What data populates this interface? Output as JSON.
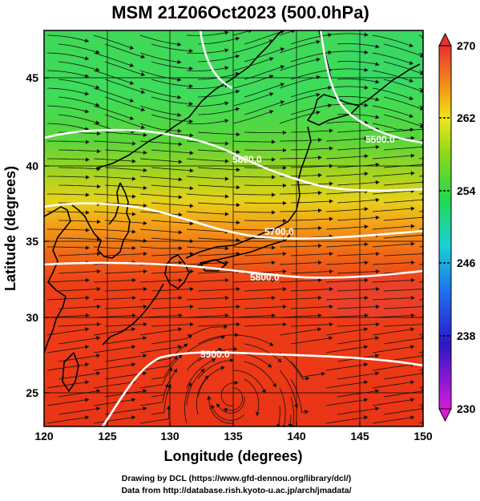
{
  "title": "MSM 21Z06Oct2023 (500.0hPa)",
  "x_axis": {
    "label": "Longitude (degrees)",
    "range": [
      120,
      150
    ],
    "ticks": [
      "120",
      "125",
      "130",
      "135",
      "140",
      "145",
      "150"
    ]
  },
  "y_axis": {
    "label": "Latitude  (degrees)",
    "range": [
      22.5,
      47.6
    ],
    "ticks": [
      "25",
      "30",
      "35",
      "40",
      "45"
    ]
  },
  "colorbar": {
    "range": [
      230,
      270
    ],
    "ticks": [
      "230",
      "238",
      "246",
      "254",
      "262",
      "270"
    ],
    "colors": [
      "#d81ad8",
      "#2a18c8",
      "#1e6ff0",
      "#19d2d6",
      "#23d84c",
      "#8ad81a",
      "#f0e61a",
      "#f59a18",
      "#ee3a16",
      "#e8302e"
    ]
  },
  "contours": [
    {
      "label": "5500.0"
    },
    {
      "label": "5600.0"
    },
    {
      "label": "5700.0"
    },
    {
      "label": "5800.0"
    },
    {
      "label": "5900.0"
    }
  ],
  "credits": {
    "line1": "Drawing by DCL (https://www.gfd-dennou.org/library/dcl/)",
    "line2": "Data from http://database.rish.kyoto-u.ac.jp/arch/jmadata/"
  }
}
